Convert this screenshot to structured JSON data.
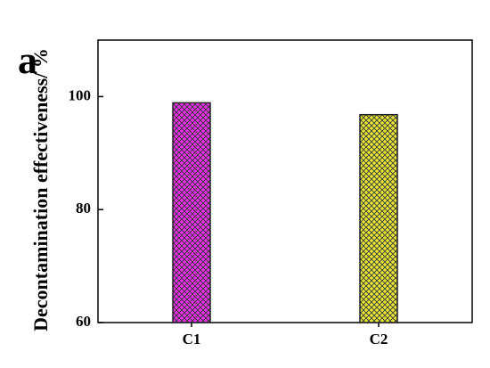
{
  "chart_data": {
    "type": "bar",
    "panel_label": "a",
    "y_label": "Decontamination effectiveness/ %",
    "categories": [
      "C1",
      "C2"
    ],
    "values": [
      98.9,
      96.8
    ],
    "colors": [
      "#e632e6",
      "#e4e43a"
    ],
    "ylim": [
      60,
      110
    ],
    "yticks": [
      60,
      80,
      100
    ],
    "grid": false
  }
}
